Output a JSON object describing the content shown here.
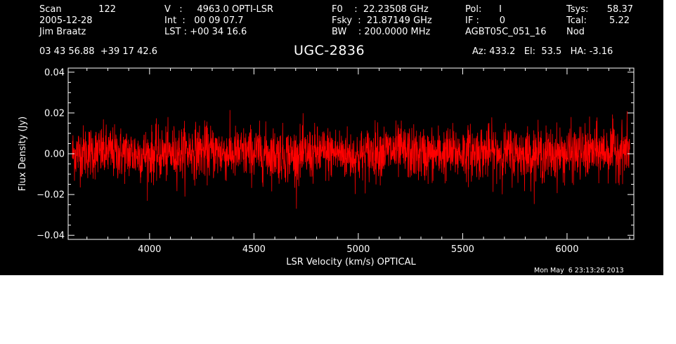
{
  "header": {
    "col1": [
      {
        "label": "Scan",
        "value": "122"
      },
      {
        "text": "2005-12-28"
      },
      {
        "text": "Jim Braatz"
      }
    ],
    "col2": [
      "V   :     4963.0 OPTI-LSR",
      "Int  :   00 09 07.7",
      "LST : +00 34 16.6"
    ],
    "col3": [
      "F0    :  22.23508 GHz",
      "Fsky  :  21.87149 GHz",
      "BW    : 200.0000 MHz"
    ],
    "col4": [
      "Pol:      I",
      "IF :       0",
      "AGBT05C_051_16"
    ],
    "col5": [
      {
        "label": "Tsys:",
        "value": "58.37"
      },
      {
        "label": "Tcal:",
        "value": "5.22"
      },
      {
        "label": "Nod",
        "value": ""
      }
    ],
    "coords": "03 43 56.88  +39 17 42.6",
    "pointing": "Az: 433.2   El:  53.5   HA: -3.16"
  },
  "timestamp": "Mon May  6 23:13:26 2013",
  "colors": {
    "background": "#000000",
    "foreground": "#ffffff",
    "trace": "#ff0000"
  },
  "chart_data": {
    "type": "line",
    "title": "UGC-2836",
    "xlabel": "LSR Velocity (km/s) OPTICAL",
    "ylabel": "Flux Density (Jy)",
    "xlim": [
      3610,
      6320
    ],
    "ylim": [
      -0.042,
      0.042
    ],
    "x_ticks": [
      4000,
      4500,
      5000,
      5500,
      6000
    ],
    "y_ticks": [
      -0.04,
      -0.02,
      0.0,
      0.02,
      0.04
    ],
    "y_tick_labels": [
      "−0.04",
      "−0.02",
      "0.00",
      "0.02",
      "0.04"
    ],
    "series": [
      {
        "color": "#ff0000",
        "x_start": 3630,
        "x_end": 6300,
        "x": [
          3630,
          3700,
          3800,
          3900,
          4000,
          4100,
          4200,
          4300,
          4400,
          4500,
          4600,
          4700,
          4800,
          4900,
          5000,
          5100,
          5200,
          5300,
          5400,
          5500,
          5600,
          5700,
          5800,
          5900,
          6000,
          6100,
          6200,
          6300
        ],
        "mean": [
          0.0,
          0.001,
          0.0005,
          0.0,
          -0.0005,
          0.0,
          0.0015,
          0.001,
          0.0,
          0.0005,
          0.0,
          -0.001,
          0.0,
          0.0005,
          -0.0015,
          0.0015,
          0.001,
          -0.0005,
          0.0,
          0.0005,
          0.001,
          0.0005,
          0.0,
          -0.0005,
          0.0,
          0.0005,
          0.0015,
          0.002
        ],
        "rms": 0.0065,
        "peak_max": 0.029,
        "peak_min": -0.027
      }
    ],
    "grid": false,
    "legend": "none"
  }
}
